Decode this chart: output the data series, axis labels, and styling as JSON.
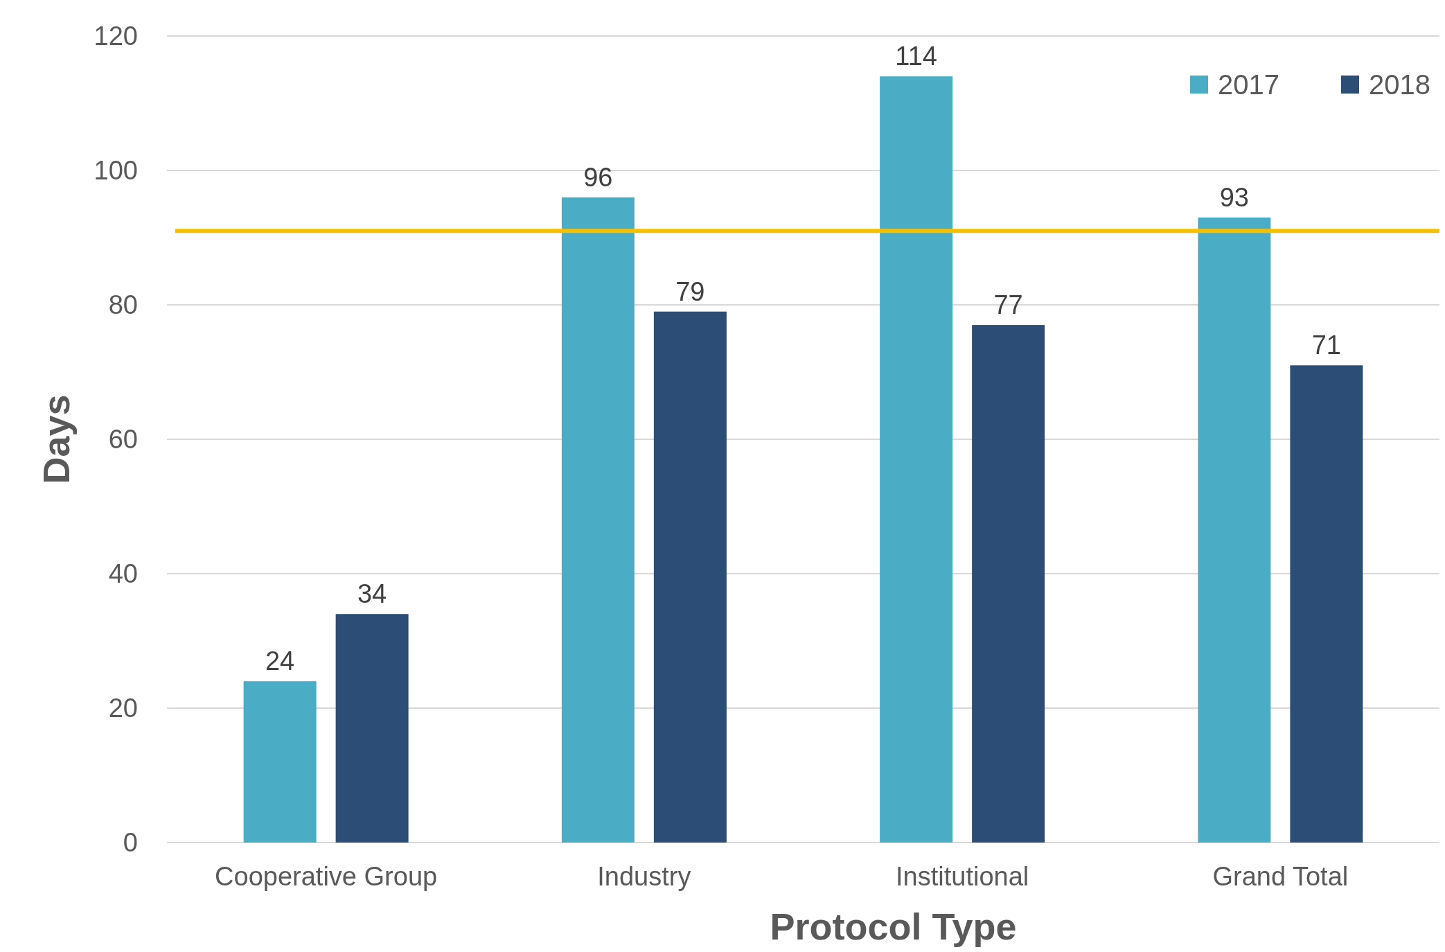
{
  "chart_data": {
    "type": "bar",
    "xlabel": "Protocol Type",
    "ylabel": "Days",
    "categories": [
      "Cooperative Group",
      "Industry",
      "Institutional",
      "Grand Total"
    ],
    "series": [
      {
        "name": "2017",
        "color": "#4bacc6",
        "values": [
          24,
          96,
          114,
          93
        ]
      },
      {
        "name": "2018",
        "color": "#2c4d75",
        "values": [
          34,
          79,
          77,
          71
        ]
      }
    ],
    "ylim": [
      0,
      120
    ],
    "yticks": [
      0,
      20,
      40,
      60,
      80,
      100,
      120
    ],
    "grid": "y",
    "legend": "top right",
    "data_labels": true,
    "ref_lines": [
      {
        "axis": "y",
        "value": 91,
        "color": "#f5c000"
      }
    ]
  }
}
